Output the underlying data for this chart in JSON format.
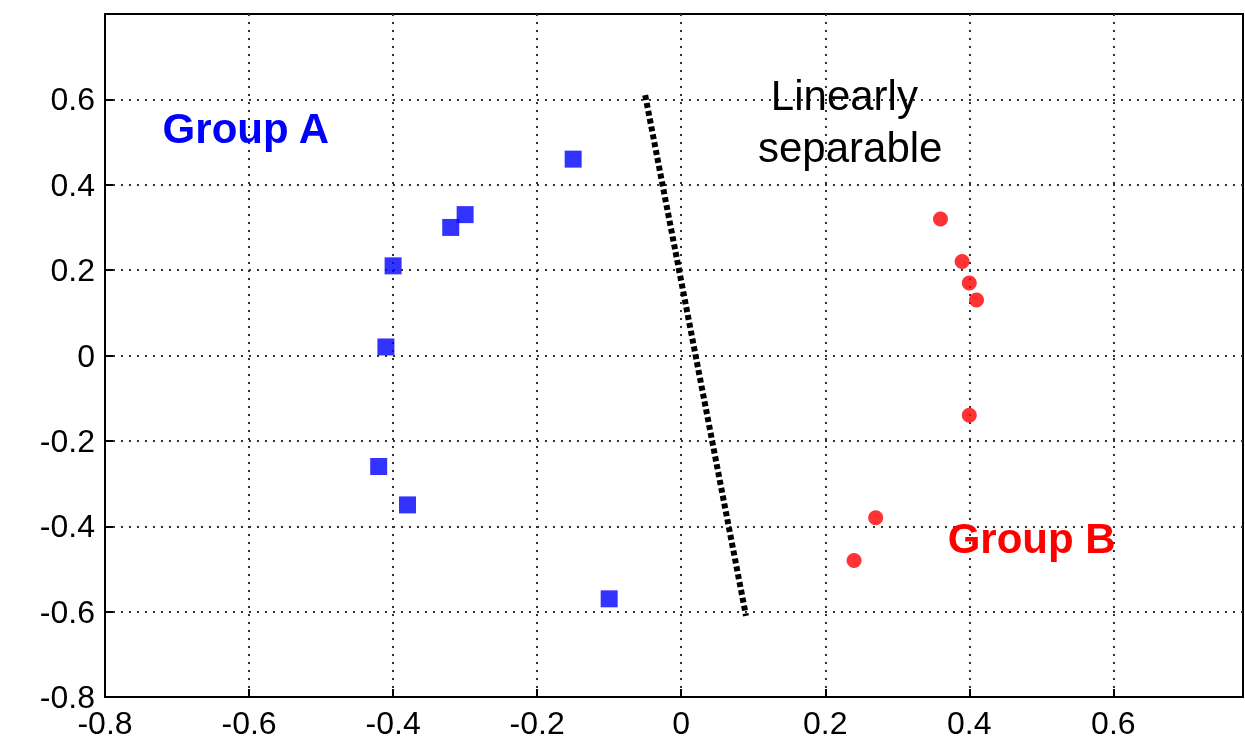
{
  "chart_data": {
    "type": "scatter",
    "annotations": [
      "Linearly separable"
    ],
    "xlim": [
      -0.8,
      0.78
    ],
    "xticks": [
      -0.8,
      -0.6,
      -0.4,
      -0.2,
      0,
      0.2,
      0.4,
      0.6
    ],
    "ylim": [
      -0.8,
      0.8
    ],
    "yticks": [
      -0.8,
      -0.6,
      -0.4,
      -0.2,
      0,
      0.2,
      0.4,
      0.6
    ],
    "grid": true,
    "series": [
      {
        "name": "Group A",
        "color": "#0000ff",
        "marker": "square",
        "x": [
          -0.15,
          -0.3,
          -0.32,
          -0.4,
          -0.41,
          -0.42,
          -0.38,
          -0.1
        ],
        "values": [
          0.46,
          0.33,
          0.3,
          0.21,
          0.02,
          -0.26,
          -0.35,
          -0.57
        ]
      },
      {
        "name": "Group B",
        "color": "#ff0000",
        "marker": "circle",
        "x": [
          0.36,
          0.39,
          0.4,
          0.41,
          0.4,
          0.27,
          0.24
        ],
        "values": [
          0.32,
          0.22,
          0.17,
          0.13,
          -0.14,
          -0.38,
          -0.48
        ]
      },
      {
        "type": "line",
        "color": "#000000",
        "marker": "none",
        "line_style": "dashed",
        "x": [
          -0.05,
          0.09
        ],
        "values": [
          0.61,
          -0.61
        ]
      }
    ]
  }
}
